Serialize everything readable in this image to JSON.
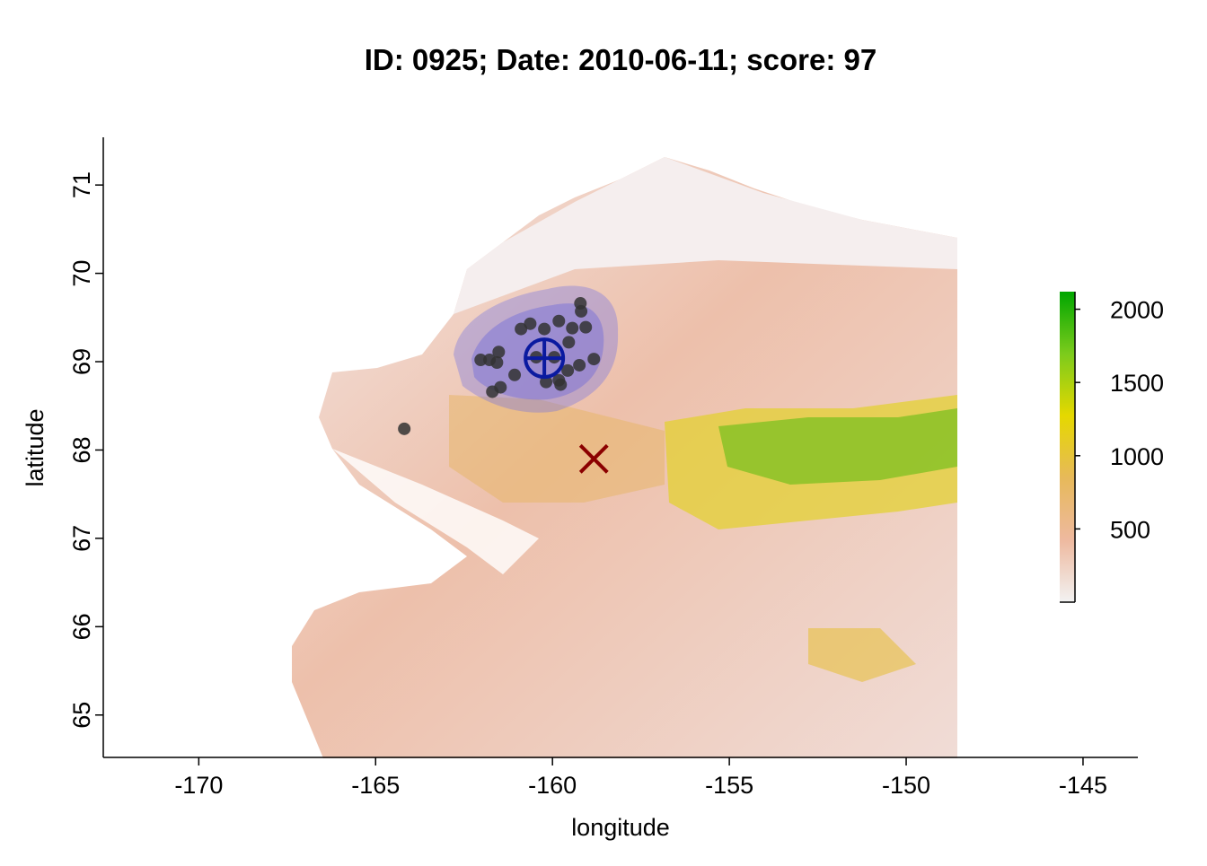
{
  "chart_data": {
    "type": "scatter",
    "title": "ID: 0925;  Date: 2010-06-11;  score: 97",
    "x_label": "longitude",
    "y_label": "latitude",
    "xlim": [
      -172.7,
      -143.45
    ],
    "ylim": [
      64.52,
      71.54
    ],
    "xticks": [
      -170,
      -165,
      -160,
      -155,
      -150,
      -145
    ],
    "yticks": [
      65,
      66,
      67,
      68,
      69,
      70,
      71
    ],
    "series": [
      {
        "color": "#333333",
        "x": [
          -164.19,
          -162.03,
          -161.78,
          -161.57,
          -161.52,
          -161.7,
          -161.47,
          -161.07,
          -160.89,
          -160.63,
          -160.23,
          -159.82,
          -159.54,
          -159.44,
          -159.19,
          -159.21,
          -159.06,
          -159.24,
          -158.83,
          -159.57,
          -159.77,
          -159.82,
          -160.18,
          -159.95,
          -160.46
        ],
        "values": [
          68.24,
          69.02,
          69.02,
          68.99,
          69.11,
          68.66,
          68.71,
          68.85,
          69.37,
          69.43,
          69.37,
          69.46,
          69.22,
          69.38,
          69.57,
          69.66,
          69.39,
          68.96,
          69.03,
          68.9,
          68.74,
          68.79,
          68.77,
          69.05,
          69.05
        ]
      }
    ],
    "markers": [
      {
        "shape": "circle-cross",
        "color": "#0a1aa0",
        "x": -160.23,
        "y": 69.04
      },
      {
        "shape": "x",
        "color": "#8b0000",
        "x": -158.83,
        "y": 67.9
      }
    ],
    "colorbar": {
      "lim": [
        0,
        2120
      ],
      "ticks": [
        500,
        1000,
        1500,
        2000
      ],
      "colors": [
        "#f2f2f2",
        "#eeb99f",
        "#e7b95a",
        "#e5d800",
        "#7ccb1c",
        "#00a600"
      ]
    }
  }
}
